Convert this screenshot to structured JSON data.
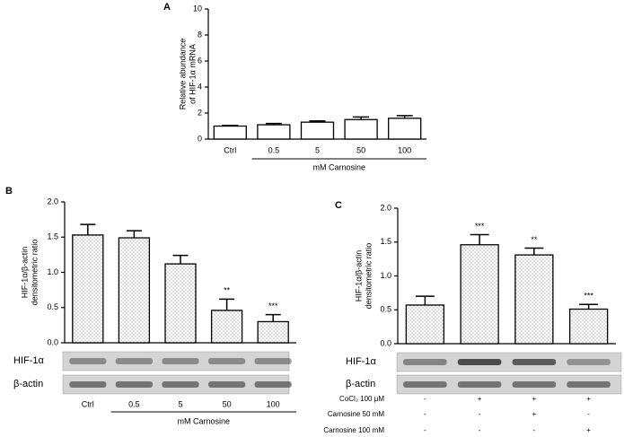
{
  "chart_data": [
    {
      "type": "bar",
      "panel": "A",
      "y_label": [
        "Relative abundance",
        "of HIF-1α mRNA"
      ],
      "categories": [
        "Ctrl",
        "0.5",
        "5",
        "50",
        "100"
      ],
      "group_label": "mM Carnosine",
      "values": [
        1.0,
        1.1,
        1.3,
        1.5,
        1.6
      ],
      "errors": [
        0.05,
        0.1,
        0.1,
        0.2,
        0.2
      ],
      "fill": "plain",
      "ylim": [
        0,
        10
      ],
      "yticks": [
        0,
        2,
        4,
        6,
        8,
        10
      ]
    },
    {
      "type": "bar",
      "panel": "B",
      "y_label": [
        "HIF-1α/β-actin",
        "densitometric ratio"
      ],
      "categories": [
        "Ctrl",
        "0.5",
        "5",
        "50",
        "100"
      ],
      "group_label": "mM Carnosine",
      "values": [
        1.53,
        1.49,
        1.12,
        0.46,
        0.3
      ],
      "errors": [
        0.15,
        0.1,
        0.12,
        0.16,
        0.1
      ],
      "annotations": [
        null,
        null,
        null,
        "**",
        "***"
      ],
      "fill": "dotted",
      "blot_labels": [
        "HIF-1α",
        "β-actin"
      ],
      "ylim": [
        0,
        2
      ],
      "yticks": [
        {
          "value": 0,
          "label": "0.0"
        },
        {
          "value": 0.5,
          "label": "0.5"
        },
        {
          "value": 1,
          "label": "1.0"
        },
        {
          "value": 1.5,
          "label": "1.5"
        },
        {
          "value": 2,
          "label": "2.0"
        }
      ]
    },
    {
      "type": "bar",
      "panel": "C",
      "y_label": [
        "HIF-1α/β-actin",
        "densitometric ratio"
      ],
      "values": [
        0.57,
        1.46,
        1.31,
        0.51
      ],
      "errors": [
        0.13,
        0.15,
        0.1,
        0.07
      ],
      "annotations": [
        null,
        "***",
        "**",
        "***"
      ],
      "fill": "dotted",
      "blot_labels": [
        "HIF-1α",
        "β-actin"
      ],
      "treatments": [
        {
          "label": "CoCl₂ 100 μM",
          "marks": [
            "-",
            "+",
            "+",
            "+"
          ]
        },
        {
          "label": "Carnosine 50 mM",
          "marks": [
            "-",
            "-",
            "+",
            "-"
          ]
        },
        {
          "label": "Carnosine 100 mM",
          "marks": [
            "-",
            "-",
            "-",
            "+"
          ]
        }
      ],
      "ylim": [
        0,
        2
      ],
      "yticks": [
        {
          "value": 0,
          "label": "0.0"
        },
        {
          "value": 0.5,
          "label": "0.5"
        },
        {
          "value": 1,
          "label": "1.0"
        },
        {
          "value": 1.5,
          "label": "1.5"
        },
        {
          "value": 2,
          "label": "2.0"
        }
      ]
    }
  ]
}
